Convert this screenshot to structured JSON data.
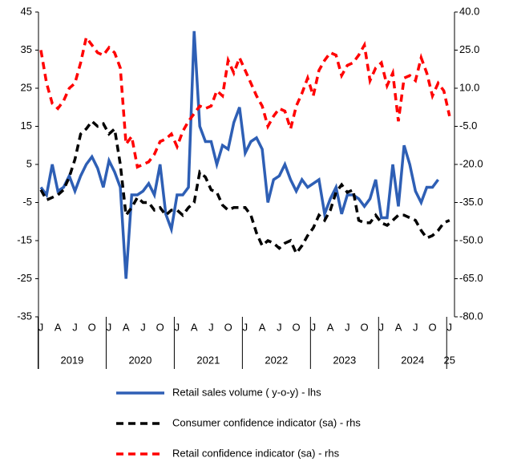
{
  "chart_data": {
    "type": "line",
    "categories": [
      "J",
      null,
      null,
      "A",
      null,
      null,
      "J",
      null,
      null,
      "O",
      null,
      null,
      "J",
      null,
      null,
      "A",
      null,
      null,
      "J",
      null,
      null,
      "O",
      null,
      null,
      "J",
      null,
      null,
      "A",
      null,
      null,
      "J",
      null,
      null,
      "O",
      null,
      null,
      "J",
      null,
      null,
      "A",
      null,
      null,
      "J",
      null,
      null,
      "O",
      null,
      null,
      "J",
      null,
      null,
      "A",
      null,
      null,
      "J",
      null,
      null,
      "O",
      null,
      null,
      "J",
      null,
      null,
      "A",
      null,
      null,
      "J",
      null,
      null,
      "O",
      null,
      null,
      "J"
    ],
    "year_labels": [
      "2019",
      "2020",
      "2021",
      "2022",
      "2023",
      "2024",
      "25"
    ],
    "ylim": [
      -35,
      45
    ],
    "yticks": [
      -35,
      -25,
      -15,
      -5,
      5,
      15,
      25,
      35,
      45
    ],
    "y2lim": [
      -80,
      40
    ],
    "y2ticks": [
      {
        "value": -80,
        "label": "-80.0"
      },
      {
        "value": -65,
        "label": "-65.0"
      },
      {
        "value": -50,
        "label": "-50.0"
      },
      {
        "value": -35,
        "label": "-35.0"
      },
      {
        "value": -20,
        "label": "-20.0"
      },
      {
        "value": -5,
        "label": "-5.0"
      },
      {
        "value": 10,
        "label": "10.0"
      },
      {
        "value": 25,
        "label": "25.0"
      },
      {
        "value": 40,
        "label": "40.0"
      }
    ],
    "series": [
      {
        "name": "Retail sales volume ( y-o-y) - lhs",
        "color": "#2e5fb5",
        "dash": false,
        "axis": "y",
        "values": [
          -1,
          -3,
          5,
          -2,
          -1,
          2,
          -2,
          2,
          5,
          7,
          4,
          -1,
          6,
          3,
          -1,
          -25,
          -3,
          -3,
          -2,
          0,
          -3,
          5,
          -8,
          -12,
          -3,
          -3,
          -1,
          40,
          15,
          11,
          11,
          5,
          10,
          9,
          16,
          20,
          8,
          11,
          12,
          9,
          -5,
          1,
          2,
          5,
          1,
          -2,
          1,
          -1,
          0,
          1,
          -8,
          -4,
          -1,
          -8,
          -3,
          -3,
          -4,
          -6,
          -4,
          1,
          -9,
          -9,
          5,
          -6,
          10,
          5,
          -2,
          -5,
          -1,
          -1,
          1,
          null,
          null
        ]
      },
      {
        "name": "Consumer confidence indicator (sa) - rhs",
        "color": "#000000",
        "dash": true,
        "axis": "y2",
        "values": [
          -30,
          -34,
          -33,
          -32,
          -30,
          -25,
          -18,
          -8,
          -6,
          -3,
          -5,
          -4,
          -8,
          -6,
          -20,
          -40,
          -37,
          -33,
          -35,
          -35,
          -38,
          -37,
          -40,
          -38,
          -38,
          -40,
          -37,
          -35,
          -23,
          -25,
          -30,
          -31,
          -36,
          -38,
          -37,
          -37,
          -37,
          -40,
          -47,
          -52,
          -50,
          -51,
          -53,
          -51,
          -50,
          -55,
          -52,
          -48,
          -45,
          -40,
          -42,
          -38,
          -31,
          -28,
          -31,
          -30,
          -42,
          -43,
          -43,
          -40,
          -43,
          -44,
          -42,
          -40,
          -40,
          -41,
          -42,
          -46,
          -49,
          -48,
          -46,
          -43,
          -42
        ]
      },
      {
        "name": "Retail confidence indicator (sa) - rhs",
        "color": "#ff0000",
        "dash": true,
        "axis": "y2",
        "values": [
          25,
          12,
          4,
          2,
          5,
          10,
          12,
          20,
          30,
          27,
          24,
          23,
          26,
          24,
          18,
          -12,
          -9,
          -21,
          -20,
          -19,
          -16,
          -11,
          -10,
          -8,
          -13,
          -7,
          -3,
          0,
          3,
          2,
          3,
          9,
          7,
          21,
          16,
          22,
          17,
          12,
          7,
          3,
          -5,
          -1,
          2,
          1,
          -6,
          3,
          8,
          14,
          7,
          17,
          21,
          24,
          23,
          15,
          19,
          20,
          23,
          27,
          13,
          18,
          20,
          11,
          16,
          -3,
          14,
          15,
          13,
          22,
          16,
          7,
          12,
          9,
          -1
        ]
      }
    ]
  }
}
